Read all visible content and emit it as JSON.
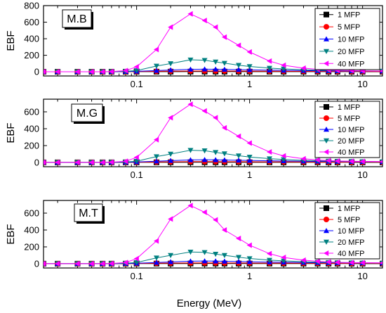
{
  "figure": {
    "xlabel": "Energy (MeV)"
  },
  "chart_data": [
    {
      "type": "line",
      "panel_label": "M.B",
      "ylabel": "EBF",
      "xscale": "log",
      "xlim": [
        0.015,
        15
      ],
      "ylim": [
        -50,
        800
      ],
      "yticks": [
        0,
        200,
        400,
        600,
        800
      ],
      "xticks": [
        0.1,
        1,
        10
      ],
      "xtick_labels": [
        "0.1",
        "1",
        "10"
      ],
      "legend_position": "top-right",
      "x": [
        0.015,
        0.02,
        0.03,
        0.04,
        0.05,
        0.06,
        0.08,
        0.1,
        0.15,
        0.2,
        0.3,
        0.4,
        0.5,
        0.6,
        0.8,
        1,
        1.5,
        2,
        3,
        4,
        5,
        6,
        8,
        10,
        15
      ],
      "series": [
        {
          "name": "1 MFP",
          "color": "#000000",
          "marker": "square",
          "values": [
            1,
            1,
            1,
            1,
            1.1,
            1.2,
            1.4,
            1.6,
            2.0,
            2.3,
            2.6,
            2.7,
            2.7,
            2.6,
            2.5,
            2.4,
            2.2,
            2.1,
            1.9,
            1.8,
            1.7,
            1.7,
            1.6,
            1.5,
            1.4
          ]
        },
        {
          "name": "5 MFP",
          "color": "#ff0000",
          "marker": "circle",
          "values": [
            1,
            1,
            1,
            1,
            1.1,
            1.3,
            2,
            3,
            6,
            8,
            10,
            10.5,
            10.2,
            9.8,
            9,
            8.5,
            7.5,
            6.8,
            6,
            5.5,
            5,
            4.7,
            4.3,
            4,
            3.5
          ]
        },
        {
          "name": "10 MFP",
          "color": "#0000ff",
          "marker": "triangle-up",
          "values": [
            1,
            1,
            1,
            1,
            1.2,
            1.5,
            3,
            6,
            15,
            22,
            30,
            32,
            31,
            29,
            26,
            24,
            20,
            18,
            15,
            13,
            12,
            11,
            10,
            9,
            8
          ]
        },
        {
          "name": "20 MFP",
          "color": "#008080",
          "marker": "triangle-down",
          "values": [
            1,
            1,
            1,
            1,
            1.3,
            2,
            6,
            15,
            70,
            100,
            145,
            140,
            120,
            105,
            80,
            65,
            45,
            35,
            25,
            20,
            17,
            15,
            13,
            11,
            9
          ]
        },
        {
          "name": "40 MFP",
          "color": "#ff00ff",
          "marker": "triangle-left",
          "values": [
            1,
            1,
            1,
            1,
            1.5,
            3,
            15,
            60,
            270,
            540,
            700,
            620,
            540,
            420,
            320,
            240,
            130,
            80,
            45,
            30,
            22,
            18,
            15,
            12,
            10
          ]
        }
      ]
    },
    {
      "type": "line",
      "panel_label": "M.G",
      "ylabel": "EBF",
      "xscale": "log",
      "xlim": [
        0.015,
        15
      ],
      "ylim": [
        -50,
        750
      ],
      "yticks": [
        0,
        200,
        400,
        600
      ],
      "xticks": [
        0.1,
        1,
        10
      ],
      "xtick_labels": [
        "0.1",
        "1",
        "10"
      ],
      "legend_position": "top-right",
      "x": [
        0.015,
        0.02,
        0.03,
        0.04,
        0.05,
        0.06,
        0.08,
        0.1,
        0.15,
        0.2,
        0.3,
        0.4,
        0.5,
        0.6,
        0.8,
        1,
        1.5,
        2,
        3,
        4,
        5,
        6,
        8,
        10,
        15
      ],
      "series": [
        {
          "name": "1 MFP",
          "color": "#000000",
          "marker": "square",
          "values": [
            1,
            1,
            1,
            1,
            1.1,
            1.2,
            1.4,
            1.6,
            2.0,
            2.3,
            2.6,
            2.7,
            2.7,
            2.6,
            2.5,
            2.4,
            2.2,
            2.1,
            1.9,
            1.8,
            1.7,
            1.7,
            1.6,
            1.5,
            1.4
          ]
        },
        {
          "name": "5 MFP",
          "color": "#ff0000",
          "marker": "circle",
          "values": [
            1,
            1,
            1,
            1,
            1.1,
            1.3,
            2,
            3,
            6,
            8,
            10,
            10.5,
            10.2,
            9.8,
            9,
            8.5,
            7.5,
            6.8,
            6,
            5.5,
            5,
            4.7,
            4.3,
            4,
            3.5
          ]
        },
        {
          "name": "10 MFP",
          "color": "#0000ff",
          "marker": "triangle-up",
          "values": [
            1,
            1,
            1,
            1,
            1.2,
            1.5,
            3,
            6,
            15,
            22,
            30,
            32,
            31,
            29,
            26,
            24,
            20,
            18,
            15,
            13,
            12,
            11,
            10,
            9,
            8
          ]
        },
        {
          "name": "20 MFP",
          "color": "#008080",
          "marker": "triangle-down",
          "values": [
            1,
            1,
            1,
            1,
            1.3,
            2,
            6,
            15,
            70,
            100,
            145,
            140,
            120,
            105,
            80,
            65,
            45,
            35,
            25,
            20,
            17,
            15,
            13,
            11,
            9
          ]
        },
        {
          "name": "40 MFP",
          "color": "#ff00ff",
          "marker": "triangle-left",
          "values": [
            1,
            1,
            1,
            1,
            1.5,
            3,
            15,
            60,
            270,
            530,
            690,
            610,
            530,
            410,
            310,
            230,
            125,
            78,
            44,
            30,
            22,
            18,
            15,
            12,
            10
          ]
        }
      ]
    },
    {
      "type": "line",
      "panel_label": "M.T",
      "ylabel": "EBF",
      "xscale": "log",
      "xlim": [
        0.015,
        15
      ],
      "ylim": [
        -50,
        750
      ],
      "yticks": [
        0,
        200,
        400,
        600
      ],
      "xticks": [
        0.1,
        1,
        10
      ],
      "xtick_labels": [
        "0.1",
        "1",
        "10"
      ],
      "legend_position": "top-right",
      "x": [
        0.015,
        0.02,
        0.03,
        0.04,
        0.05,
        0.06,
        0.08,
        0.1,
        0.15,
        0.2,
        0.3,
        0.4,
        0.5,
        0.6,
        0.8,
        1,
        1.5,
        2,
        3,
        4,
        5,
        6,
        8,
        10,
        15
      ],
      "series": [
        {
          "name": "1 MFP",
          "color": "#000000",
          "marker": "square",
          "values": [
            1,
            1,
            1,
            1,
            1.1,
            1.2,
            1.4,
            1.6,
            2.0,
            2.3,
            2.6,
            2.7,
            2.7,
            2.6,
            2.5,
            2.4,
            2.2,
            2.1,
            1.9,
            1.8,
            1.7,
            1.7,
            1.6,
            1.5,
            1.4
          ]
        },
        {
          "name": "5 MFP",
          "color": "#ff0000",
          "marker": "circle",
          "values": [
            1,
            1,
            1,
            1,
            1.1,
            1.3,
            2,
            3,
            6,
            8,
            10,
            10.5,
            10.2,
            9.8,
            9,
            8.5,
            7.5,
            6.8,
            6,
            5.5,
            5,
            4.7,
            4.3,
            4,
            3.5
          ]
        },
        {
          "name": "10 MFP",
          "color": "#0000ff",
          "marker": "triangle-up",
          "values": [
            1,
            1,
            1,
            1,
            1.2,
            1.5,
            3,
            6,
            15,
            22,
            30,
            32,
            31,
            29,
            26,
            24,
            20,
            18,
            15,
            13,
            12,
            11,
            10,
            9,
            8
          ]
        },
        {
          "name": "20 MFP",
          "color": "#008080",
          "marker": "triangle-down",
          "values": [
            1,
            1,
            1,
            1,
            1.3,
            2,
            6,
            15,
            70,
            100,
            140,
            135,
            115,
            100,
            78,
            62,
            43,
            34,
            24,
            19,
            16,
            14,
            12,
            10,
            9
          ]
        },
        {
          "name": "40 MFP",
          "color": "#ff00ff",
          "marker": "triangle-left",
          "values": [
            1,
            1,
            1,
            1,
            1.5,
            3,
            15,
            60,
            270,
            530,
            690,
            610,
            520,
            400,
            300,
            220,
            120,
            75,
            43,
            29,
            21,
            17,
            14,
            12,
            10
          ]
        }
      ]
    }
  ]
}
